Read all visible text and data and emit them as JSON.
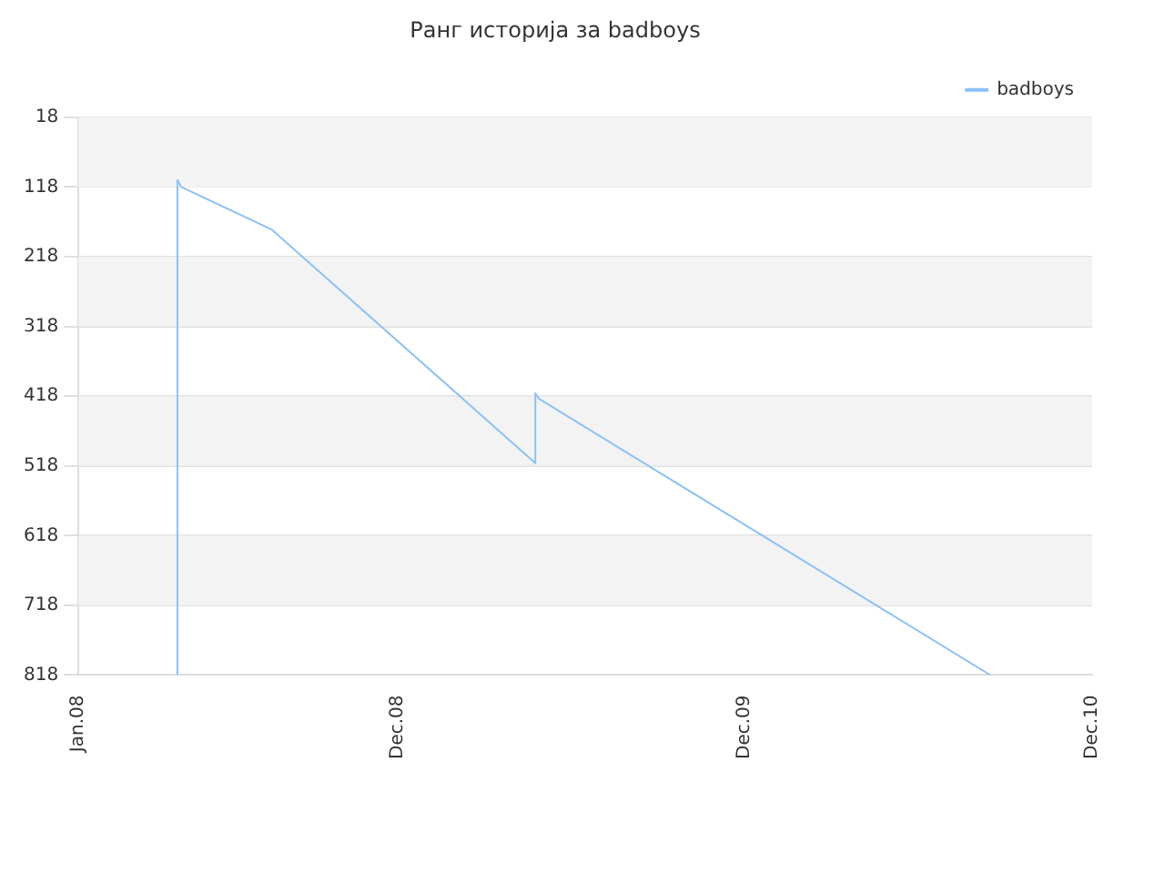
{
  "chart_data": {
    "type": "line",
    "title": "Ранг историја за badboys",
    "x": [
      "2008-04-14",
      "2008-04-14",
      "2008-04-18",
      "2008-07-22",
      "2009-04-25",
      "2009-04-25",
      "2009-04-29",
      "2010-08-16"
    ],
    "series": [
      {
        "name": "badboys",
        "color": "#8cc1f7",
        "values": [
          818,
          108,
          118,
          179,
          514,
          414,
          422,
          818
        ]
      }
    ],
    "xlim": [
      "2008-01-01",
      "2010-12-01"
    ],
    "xticks": [
      {
        "value": "2008-01-01",
        "label": "Jan.08"
      },
      {
        "value": "2008-12-01",
        "label": "Dec.08"
      },
      {
        "value": "2009-12-01",
        "label": "Dec.09"
      },
      {
        "value": "2010-12-01",
        "label": "Dec.10"
      }
    ],
    "ylim": [
      818,
      18
    ],
    "yticks": [
      18,
      118,
      218,
      318,
      418,
      518,
      618,
      718,
      818
    ],
    "bands": [
      {
        "axis": "y",
        "from": 18,
        "to": 118,
        "color": "#f3f3f3"
      },
      {
        "axis": "y",
        "from": 218,
        "to": 318,
        "color": "#f3f3f3"
      },
      {
        "axis": "y",
        "from": 418,
        "to": 518,
        "color": "#f3f3f3"
      },
      {
        "axis": "y",
        "from": 618,
        "to": 718,
        "color": "#f3f3f3"
      }
    ],
    "grid": "y",
    "legend": "top right",
    "marker": "none",
    "line_style": "solid"
  }
}
